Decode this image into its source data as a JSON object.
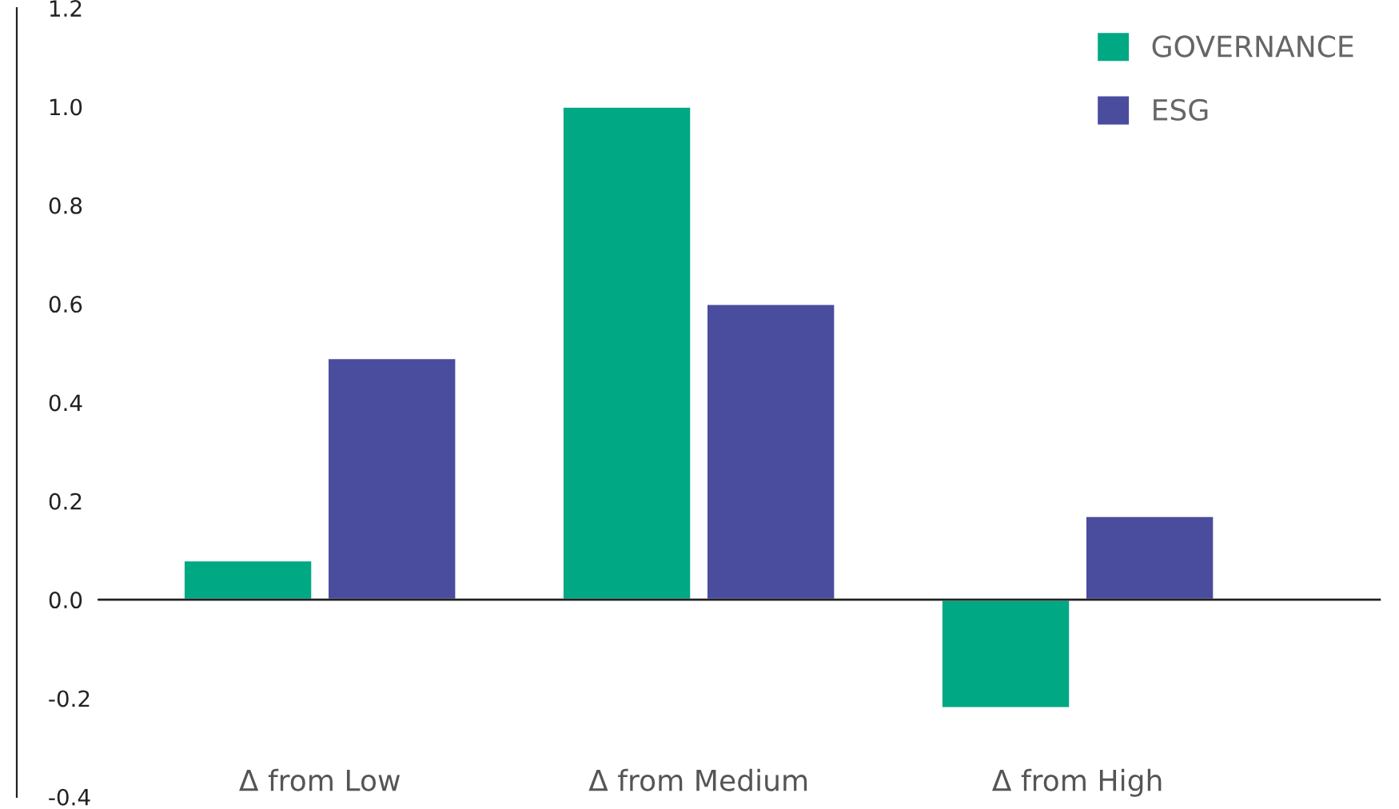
{
  "chart_data": {
    "type": "bar",
    "categories": [
      "Δ from Low",
      "Δ from Medium",
      "Δ from High"
    ],
    "series": [
      {
        "name": "GOVERNANCE",
        "color": "#00a884",
        "values": [
          0.08,
          1.0,
          -0.22
        ]
      },
      {
        "name": "ESG",
        "color": "#4a4c9e",
        "values": [
          0.49,
          0.6,
          0.17
        ]
      }
    ],
    "ylim": [
      -0.4,
      1.2
    ],
    "yticks": [
      {
        "value": -0.4,
        "label": "-0.4"
      },
      {
        "value": -0.2,
        "label": "-0.2"
      },
      {
        "value": 0,
        "label": "0.0"
      },
      {
        "value": 0.2,
        "label": "0.2"
      },
      {
        "value": 0.4,
        "label": "0.4"
      },
      {
        "value": 0.6,
        "label": "0.6"
      },
      {
        "value": 0.8,
        "label": "0.8"
      },
      {
        "value": 1.0,
        "label": "1.0"
      },
      {
        "value": 1.2,
        "label": "1.2"
      }
    ],
    "ref_lines": [
      {
        "axis": "y",
        "value": 0,
        "color": "#222222"
      }
    ],
    "grid": false,
    "legend": "top right"
  }
}
